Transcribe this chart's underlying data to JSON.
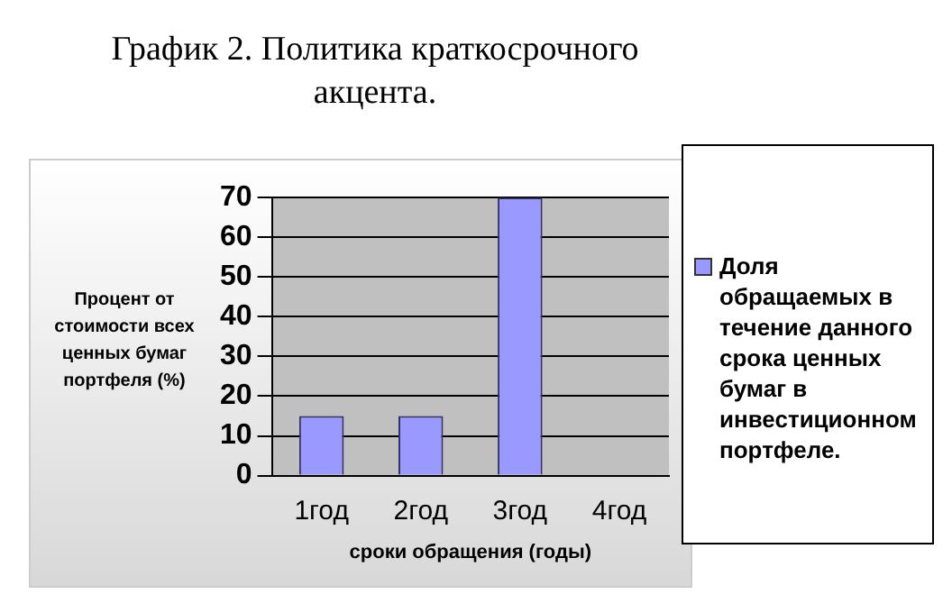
{
  "chart_data": {
    "type": "bar",
    "title": "График 2. Политика краткосрочного акцента.",
    "xlabel": "сроки обращения (годы)",
    "ylabel": "Процент от стоимости всех ценных бумаг портфеля (%)",
    "categories": [
      "1год",
      "2год",
      "3год",
      "4год"
    ],
    "series": [
      {
        "name": "Доля обращаемых в течение данного срока ценных бумаг в инвестиционном портфеле.",
        "color": "#9999ff",
        "values": [
          15,
          15,
          70,
          null
        ]
      }
    ],
    "ylim": [
      0,
      70
    ],
    "yticks": [
      0,
      10,
      20,
      30,
      40,
      50,
      60,
      70
    ],
    "grid": "y",
    "legend": "right"
  }
}
